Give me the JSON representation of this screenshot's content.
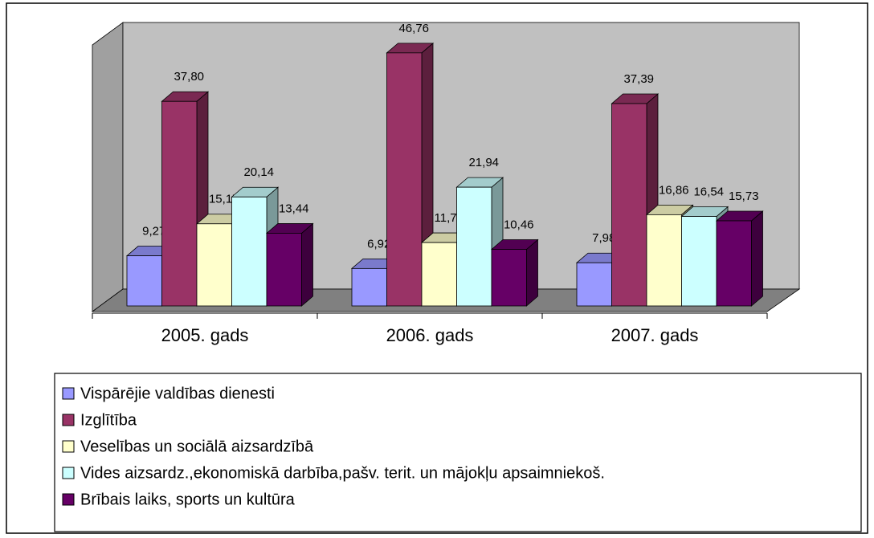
{
  "chart_data": {
    "type": "bar3d",
    "categories": [
      "2005. gads",
      "2006. gads",
      "2007. gads"
    ],
    "ylim": [
      0,
      50
    ],
    "series": [
      {
        "name": "Vispārējie valdības dienesti",
        "color": "#9999ff",
        "values": [
          9.27,
          6.92,
          7.98
        ],
        "value_labels": [
          "9,27",
          "6,92",
          "7,98"
        ]
      },
      {
        "name": "Izglītība",
        "color": "#993366",
        "values": [
          37.8,
          46.76,
          37.39
        ],
        "value_labels": [
          "37,80",
          "46,76",
          "37,39"
        ]
      },
      {
        "name": "Veselības un sociālā aizsardzībā",
        "color": "#ffffcc",
        "values": [
          15.17,
          11.71,
          16.86
        ],
        "value_labels": [
          "15,17",
          "11,71",
          "16,86"
        ]
      },
      {
        "name": "Vides aizsardz.,ekonomiskā darbība,pašv. terit. un mājokļu apsaimniekoš.",
        "color": "#ccffff",
        "values": [
          20.14,
          21.94,
          16.54
        ],
        "value_labels": [
          "20,14",
          "21,94",
          "16,54"
        ]
      },
      {
        "name": "Brībais laiks, sports un kultūra",
        "color": "#660066",
        "values": [
          13.44,
          10.46,
          15.73
        ],
        "value_labels": [
          "13,44",
          "10,46",
          "15,73"
        ]
      }
    ]
  }
}
